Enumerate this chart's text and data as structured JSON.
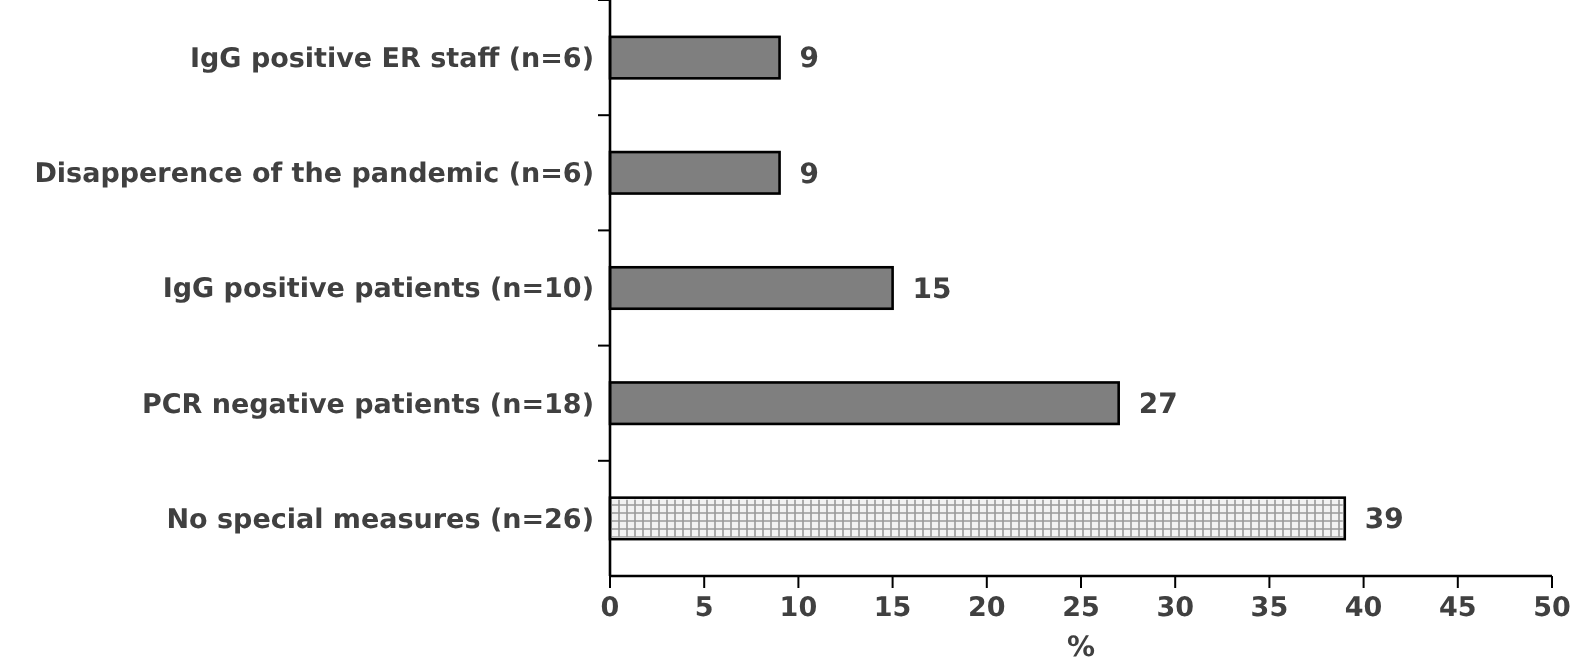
{
  "chart_data": {
    "type": "bar",
    "orientation": "horizontal",
    "xlabel": "%",
    "categories": [
      "IgG positive ER staff (n=6)",
      "Disapperence of the pandemic (n=6)",
      "IgG positive patients (n=10)",
      "PCR negative patients (n=18)",
      "No special measures (n=26)"
    ],
    "values": [
      9,
      9,
      15,
      27,
      39
    ],
    "colors": [
      "#7f7f7f",
      "#7f7f7f",
      "#7f7f7f",
      "#7f7f7f",
      "#f2f2f2"
    ],
    "xlim": [
      0,
      50
    ],
    "xticks": [
      0,
      5,
      10,
      15,
      20,
      25,
      30,
      35,
      40,
      45,
      50
    ],
    "data_labels": true,
    "grid": false
  }
}
